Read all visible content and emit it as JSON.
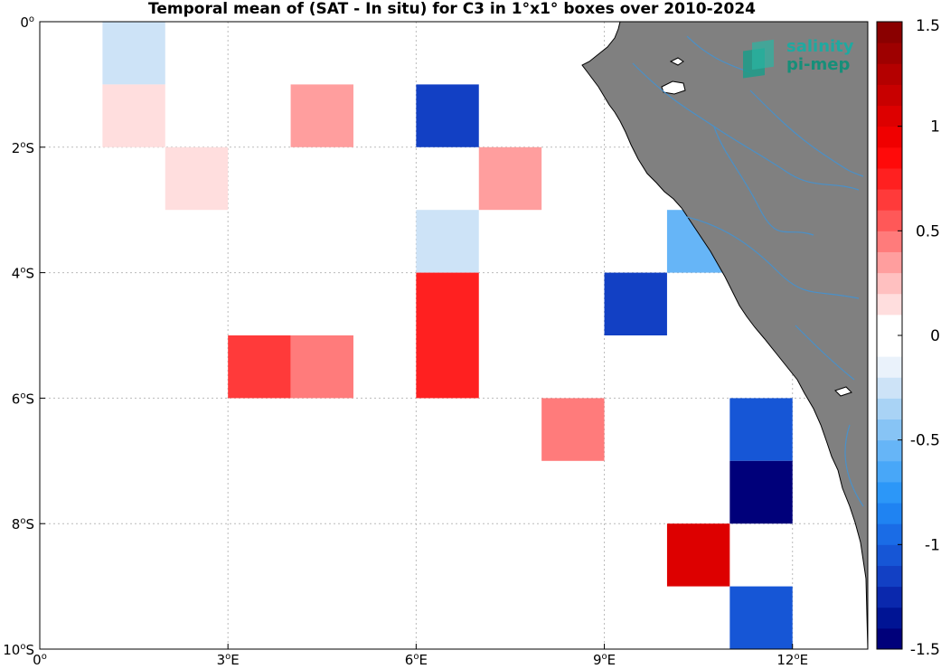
{
  "title": "Temporal mean of (SAT - In situ) for C3 in 1°x1° boxes over 2010-2024",
  "logo": {
    "line1": "salinity",
    "line2": "pi-mep"
  },
  "map": {
    "lon_range": [
      0,
      13.2
    ],
    "lat_range": [
      -10,
      0
    ],
    "land_color": "#808080",
    "river_color": "#4a90c8"
  },
  "axes": {
    "x_ticks": [
      {
        "value": 0,
        "num": "0",
        "deg": "o",
        "hem": ""
      },
      {
        "value": 3,
        "num": "3",
        "deg": "o",
        "hem": "E"
      },
      {
        "value": 6,
        "num": "6",
        "deg": "o",
        "hem": "E"
      },
      {
        "value": 9,
        "num": "9",
        "deg": "o",
        "hem": "E"
      },
      {
        "value": 12,
        "num": "12",
        "deg": "o",
        "hem": "E"
      }
    ],
    "y_ticks": [
      {
        "value": 0,
        "num": "0",
        "deg": "o",
        "hem": ""
      },
      {
        "value": -2,
        "num": "2",
        "deg": "o",
        "hem": "S"
      },
      {
        "value": -4,
        "num": "4",
        "deg": "o",
        "hem": "S"
      },
      {
        "value": -6,
        "num": "6",
        "deg": "o",
        "hem": "S"
      },
      {
        "value": -8,
        "num": "8",
        "deg": "o",
        "hem": "S"
      },
      {
        "value": -10,
        "num": "10",
        "deg": "o",
        "hem": "S"
      }
    ]
  },
  "colorbar": {
    "range": [
      -1.5,
      1.5
    ],
    "ticks": [
      {
        "value": 1.5,
        "label": "1.5"
      },
      {
        "value": 1,
        "label": "1"
      },
      {
        "value": 0.5,
        "label": "0.5"
      },
      {
        "value": 0,
        "label": "0"
      },
      {
        "value": -0.5,
        "label": "-0.5"
      },
      {
        "value": -1,
        "label": "-1"
      },
      {
        "value": -1.5,
        "label": "-1.5"
      }
    ],
    "colors": [
      "#00007a",
      "#001494",
      "#0a28ad",
      "#1240c4",
      "#1656d6",
      "#1a6ce6",
      "#1f83f2",
      "#2c97f8",
      "#48a7f8",
      "#66b5f7",
      "#87c4f5",
      "#a9d3f5",
      "#cde3f7",
      "#eaf2fb",
      "#ffffff",
      "#ffffff",
      "#ffdede",
      "#ffc0c0",
      "#ff9e9e",
      "#ff7b7b",
      "#ff5858",
      "#ff3a3a",
      "#ff2020",
      "#ff0a0a",
      "#f00000",
      "#dd0000",
      "#c80000",
      "#b40000",
      "#9e0000",
      "#8a0000"
    ]
  },
  "chart_data": {
    "type": "heatmap",
    "units": "salinity difference",
    "cells": [
      {
        "lon": 1,
        "lat": 0,
        "value": -0.25
      },
      {
        "lon": 1,
        "lat": -1,
        "value": 0.12
      },
      {
        "lon": 2,
        "lat": -2,
        "value": 0.12
      },
      {
        "lon": 4,
        "lat": -1,
        "value": 0.35
      },
      {
        "lon": 6,
        "lat": -1,
        "value": -1.1
      },
      {
        "lon": 7,
        "lat": -2,
        "value": 0.35
      },
      {
        "lon": 6,
        "lat": -3,
        "value": -0.25
      },
      {
        "lon": 6,
        "lat": -4,
        "value": 0.75
      },
      {
        "lon": 10,
        "lat": -3,
        "value": -0.55
      },
      {
        "lon": 9,
        "lat": -4,
        "value": -1.1
      },
      {
        "lon": 3,
        "lat": -5,
        "value": 0.6
      },
      {
        "lon": 4,
        "lat": -5,
        "value": 0.45
      },
      {
        "lon": 6,
        "lat": -5,
        "value": 0.75
      },
      {
        "lon": 8,
        "lat": -6,
        "value": 0.45
      },
      {
        "lon": 11,
        "lat": -6,
        "value": -1.05
      },
      {
        "lon": 11,
        "lat": -7,
        "value": -1.45
      },
      {
        "lon": 10,
        "lat": -8,
        "value": 1.05
      },
      {
        "lon": 11,
        "lat": -9,
        "value": -1.05
      }
    ]
  }
}
